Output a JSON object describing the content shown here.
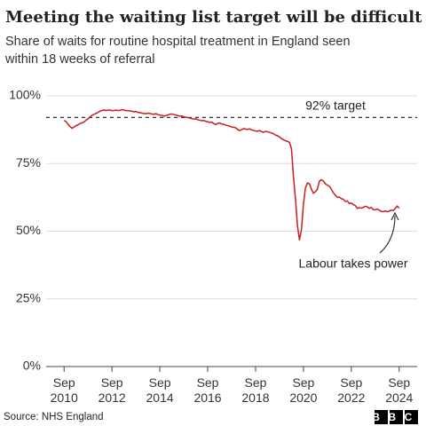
{
  "chart_data": {
    "type": "line",
    "title": "Meeting the waiting list target will be difficult",
    "subtitle": [
      "Share of waits for routine hospital treatment in England seen",
      "within 18 weeks of referral"
    ],
    "source": "Source: NHS England",
    "logo": "BBC",
    "target": 92,
    "target_label": "92% target",
    "annotation": "Labour takes power",
    "color": "#c81f1f",
    "grid": true,
    "ylim": [
      0,
      100
    ],
    "yticks": [
      {
        "value": 0,
        "label": "0%"
      },
      {
        "value": 25,
        "label": "25%"
      },
      {
        "value": 50,
        "label": "50%"
      },
      {
        "value": 75,
        "label": "75%"
      },
      {
        "value": 100,
        "label": "100%"
      }
    ],
    "xlim": [
      "2009-12",
      "2025-06"
    ],
    "xticks": [
      {
        "value": "2010-09",
        "label": "Sep 2010"
      },
      {
        "value": "2012-09",
        "label": "Sep 2012"
      },
      {
        "value": "2014-09",
        "label": "Sep 2014"
      },
      {
        "value": "2016-09",
        "label": "Sep 2016"
      },
      {
        "value": "2018-09",
        "label": "Sep 2018"
      },
      {
        "value": "2020-09",
        "label": "Sep 2020"
      },
      {
        "value": "2022-09",
        "label": "Sep 2022"
      },
      {
        "value": "2024-09",
        "label": "Sep 2024"
      }
    ],
    "x": [
      "2010-09",
      "2010-10",
      "2010-11",
      "2010-12",
      "2011-01",
      "2011-02",
      "2011-03",
      "2011-04",
      "2011-05",
      "2011-06",
      "2011-07",
      "2011-08",
      "2011-09",
      "2011-10",
      "2011-11",
      "2011-12",
      "2012-01",
      "2012-02",
      "2012-03",
      "2012-04",
      "2012-05",
      "2012-06",
      "2012-07",
      "2012-08",
      "2012-09",
      "2012-10",
      "2012-11",
      "2012-12",
      "2013-01",
      "2013-02",
      "2013-03",
      "2013-04",
      "2013-05",
      "2013-06",
      "2013-07",
      "2013-08",
      "2013-09",
      "2013-10",
      "2013-11",
      "2013-12",
      "2014-01",
      "2014-02",
      "2014-03",
      "2014-04",
      "2014-05",
      "2014-06",
      "2014-07",
      "2014-08",
      "2014-09",
      "2014-10",
      "2014-11",
      "2014-12",
      "2015-01",
      "2015-02",
      "2015-03",
      "2015-04",
      "2015-05",
      "2015-06",
      "2015-07",
      "2015-08",
      "2015-09",
      "2015-10",
      "2015-11",
      "2015-12",
      "2016-01",
      "2016-02",
      "2016-03",
      "2016-04",
      "2016-05",
      "2016-06",
      "2016-07",
      "2016-08",
      "2016-09",
      "2016-10",
      "2016-11",
      "2016-12",
      "2017-01",
      "2017-02",
      "2017-03",
      "2017-04",
      "2017-05",
      "2017-06",
      "2017-07",
      "2017-08",
      "2017-09",
      "2017-10",
      "2017-11",
      "2017-12",
      "2018-01",
      "2018-02",
      "2018-03",
      "2018-04",
      "2018-05",
      "2018-06",
      "2018-07",
      "2018-08",
      "2018-09",
      "2018-10",
      "2018-11",
      "2018-12",
      "2019-01",
      "2019-02",
      "2019-03",
      "2019-04",
      "2019-05",
      "2019-06",
      "2019-07",
      "2019-08",
      "2019-09",
      "2019-10",
      "2019-11",
      "2019-12",
      "2020-01",
      "2020-02",
      "2020-03",
      "2020-04",
      "2020-05",
      "2020-06",
      "2020-07",
      "2020-08",
      "2020-09",
      "2020-10",
      "2020-11",
      "2020-12",
      "2021-01",
      "2021-02",
      "2021-03",
      "2021-04",
      "2021-05",
      "2021-06",
      "2021-07",
      "2021-08",
      "2021-09",
      "2021-10",
      "2021-11",
      "2021-12",
      "2022-01",
      "2022-02",
      "2022-03",
      "2022-04",
      "2022-05",
      "2022-06",
      "2022-07",
      "2022-08",
      "2022-09",
      "2022-10",
      "2022-11",
      "2022-12",
      "2023-01",
      "2023-02",
      "2023-03",
      "2023-04",
      "2023-05",
      "2023-06",
      "2023-07",
      "2023-08",
      "2023-09",
      "2023-10",
      "2023-11",
      "2023-12",
      "2024-01",
      "2024-02",
      "2024-03",
      "2024-04",
      "2024-05",
      "2024-06",
      "2024-07",
      "2024-08",
      "2024-09"
    ],
    "values": [
      90.9,
      90.5,
      89.5,
      88.6,
      88.0,
      88.5,
      89.0,
      89.3,
      89.8,
      90.0,
      90.4,
      91.0,
      91.5,
      92.2,
      92.8,
      93.2,
      93.5,
      93.9,
      94.3,
      94.6,
      94.8,
      94.6,
      94.7,
      94.8,
      94.5,
      94.6,
      94.7,
      94.6,
      94.6,
      94.9,
      94.8,
      94.5,
      94.6,
      94.4,
      94.3,
      94.1,
      94.2,
      93.9,
      93.8,
      93.6,
      93.5,
      93.4,
      93.6,
      93.5,
      93.3,
      93.2,
      93.4,
      93.1,
      92.9,
      92.8,
      92.5,
      92.7,
      92.9,
      93.2,
      93.3,
      93.1,
      92.9,
      92.7,
      92.5,
      92.6,
      92.3,
      92.1,
      92.0,
      91.8,
      91.6,
      91.4,
      91.5,
      91.2,
      91.0,
      90.8,
      90.9,
      90.6,
      90.4,
      90.2,
      90.3,
      89.8,
      89.4,
      89.8,
      90.0,
      89.6,
      89.5,
      89.2,
      89.0,
      88.8,
      88.5,
      88.4,
      88.2,
      87.6,
      87.2,
      87.5,
      87.9,
      87.7,
      87.6,
      87.8,
      87.4,
      87.2,
      87.0,
      86.9,
      87.2,
      86.8,
      86.5,
      86.9,
      86.7,
      86.5,
      86.3,
      86.0,
      85.5,
      85.3,
      84.8,
      84.2,
      83.8,
      83.4,
      83.2,
      82.8,
      80.5,
      70.0,
      62.0,
      52.0,
      46.8,
      50.5,
      60.0,
      66.0,
      67.8,
      67.5,
      65.5,
      64.0,
      64.6,
      65.5,
      68.5,
      69.0,
      68.5,
      67.5,
      67.0,
      66.6,
      65.5,
      64.2,
      63.3,
      62.5,
      62.6,
      62.0,
      61.8,
      61.0,
      61.2,
      60.2,
      60.4,
      59.8,
      59.5,
      58.4,
      58.7,
      58.5,
      58.8,
      59.2,
      59.0,
      58.4,
      58.8,
      58.0,
      57.9,
      58.2,
      57.8,
      57.3,
      57.2,
      57.5,
      57.2,
      57.4,
      57.8,
      57.6,
      58.4,
      59.3,
      58.5
    ]
  }
}
